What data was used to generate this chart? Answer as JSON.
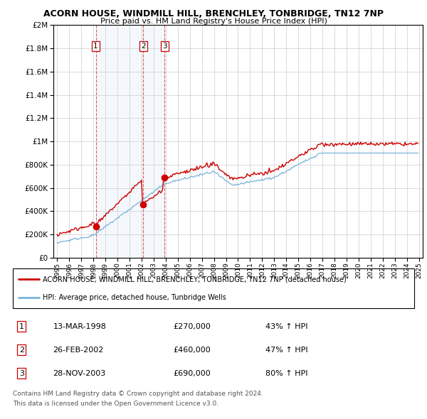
{
  "title": "ACORN HOUSE, WINDMILL HILL, BRENCHLEY, TONBRIDGE, TN12 7NP",
  "subtitle": "Price paid vs. HM Land Registry's House Price Index (HPI)",
  "legend_line1": "ACORN HOUSE, WINDMILL HILL, BRENCHLEY, TONBRIDGE, TN12 7NP (detached house)",
  "legend_line2": "HPI: Average price, detached house, Tunbridge Wells",
  "transactions": [
    {
      "num": 1,
      "date": "13-MAR-1998",
      "price": 270000,
      "pct": "43%",
      "year": 1998.21
    },
    {
      "num": 2,
      "date": "26-FEB-2002",
      "price": 460000,
      "pct": "47%",
      "year": 2002.15
    },
    {
      "num": 3,
      "date": "28-NOV-2003",
      "price": 690000,
      "pct": "80%",
      "year": 2003.91
    }
  ],
  "footer1": "Contains HM Land Registry data © Crown copyright and database right 2024.",
  "footer2": "This data is licensed under the Open Government Licence v3.0.",
  "hpi_color": "#7ab3d8",
  "price_color": "#cc0000",
  "plot_bg": "#ffffff",
  "ylim": [
    0,
    2000000
  ],
  "xlim_start": 1994.7,
  "xlim_end": 2025.3
}
